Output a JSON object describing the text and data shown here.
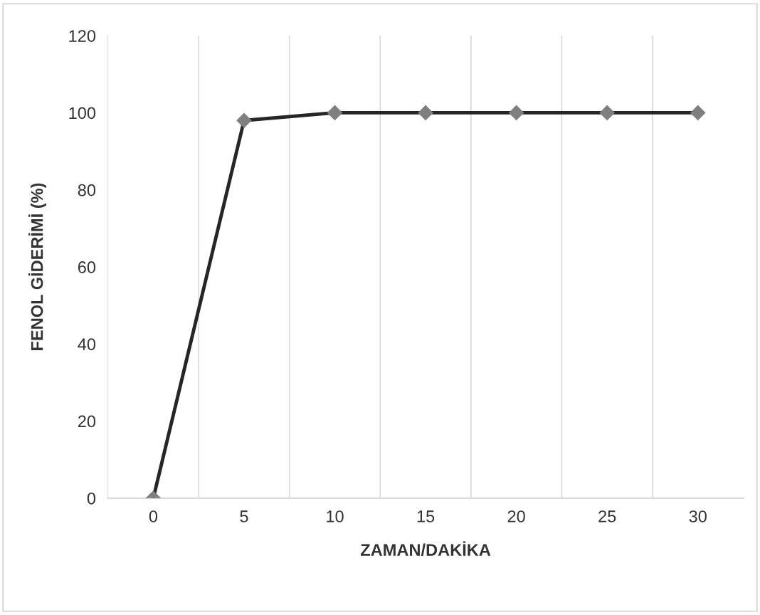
{
  "chart_data": {
    "type": "line",
    "xlabel": "ZAMAN/DAKİKA",
    "ylabel": "FENOL GİDERİMİ (%)",
    "categories": [
      "0",
      "5",
      "10",
      "15",
      "20",
      "25",
      "30"
    ],
    "series": [
      {
        "color": "#262626",
        "values": [
          0,
          98,
          100,
          100,
          100,
          100,
          100
        ]
      }
    ],
    "ylim": [
      0,
      120
    ],
    "yticks": [
      0,
      20,
      40,
      60,
      80,
      100,
      120
    ],
    "grid": "x",
    "marker": "diamond",
    "line_style": "solid"
  }
}
